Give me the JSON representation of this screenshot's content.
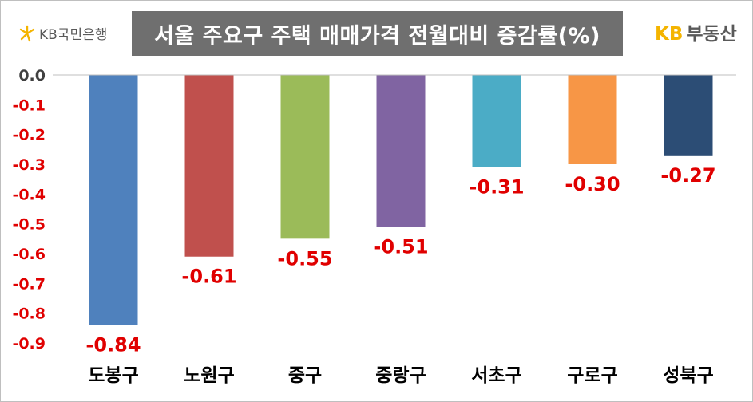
{
  "header": {
    "left_brand": "KB국민은행",
    "title": "서울 주요구 주택 매매가격 전월대비 증감률(%)",
    "right_brand_kb": "KB",
    "right_brand_name": "부동산"
  },
  "chart_data": {
    "type": "bar",
    "title": "서울 주요구 주택 매매가격 전월대비 증감률(%)",
    "categories": [
      "도봉구",
      "노원구",
      "중구",
      "중랑구",
      "서초구",
      "구로구",
      "성북구"
    ],
    "values": [
      -0.84,
      -0.61,
      -0.55,
      -0.51,
      -0.31,
      -0.3,
      -0.27
    ],
    "data_labels": [
      "-0.84",
      "-0.61",
      "-0.55",
      "-0.51",
      "-0.31",
      "-0.30",
      "-0.27"
    ],
    "colors": [
      "#4f81bd",
      "#c0504d",
      "#9bbb59",
      "#8064a2",
      "#4bacc6",
      "#f79646",
      "#2c4d75"
    ],
    "yticks": [
      "0.0",
      "-0.1",
      "-0.2",
      "-0.3",
      "-0.4",
      "-0.5",
      "-0.6",
      "-0.7",
      "-0.8",
      "-0.9"
    ],
    "ytick_values": [
      0,
      -0.1,
      -0.2,
      -0.3,
      -0.4,
      -0.5,
      -0.6,
      -0.7,
      -0.8,
      -0.9
    ],
    "ylim": [
      -0.9,
      0
    ],
    "xlabel": "",
    "ylabel": "",
    "grid": false,
    "label_color": "#e00000"
  }
}
